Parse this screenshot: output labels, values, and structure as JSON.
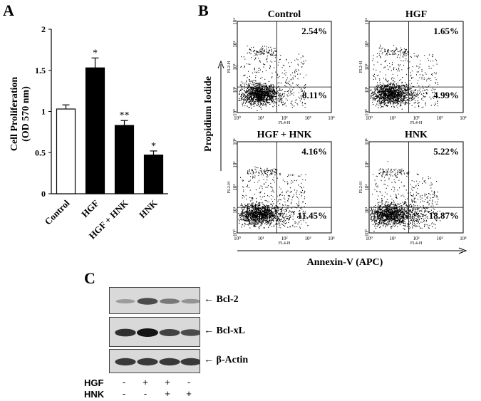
{
  "panel_a": {
    "letter": "A",
    "ylabel_line1": "Cell Proliferation",
    "ylabel_line2": "(OD 570 nm)"
  },
  "panel_b": {
    "letter": "B",
    "xlabel": "Annexin-V (APC)",
    "ylabel": "Propidium Iodide",
    "axis_x_name": "FL4-H",
    "axis_y_name": "FL2-H",
    "ticks": [
      "10⁰",
      "10¹",
      "10²",
      "10³",
      "10⁴"
    ],
    "plots": [
      {
        "title": "Control",
        "upper_right": "2.54%",
        "lower_right": "8.11%"
      },
      {
        "title": "HGF",
        "upper_right": "1.65%",
        "lower_right": "4.99%"
      },
      {
        "title": "HGF + HNK",
        "upper_right": "4.16%",
        "lower_right": "11.45%"
      },
      {
        "title": "HNK",
        "upper_right": "5.22%",
        "lower_right": "18.87%"
      }
    ]
  },
  "panel_c": {
    "letter": "C",
    "bands": [
      "Bcl-2",
      "Bcl-xL",
      "β-Actin"
    ],
    "band_intensity": [
      [
        0.25,
        0.7,
        0.45,
        0.3
      ],
      [
        0.85,
        1.0,
        0.75,
        0.7
      ],
      [
        0.8,
        0.8,
        0.8,
        0.8
      ]
    ],
    "treatments": [
      {
        "label": "HGF",
        "signs": [
          "-",
          "+",
          "+",
          "-"
        ]
      },
      {
        "label": "HNK",
        "signs": [
          "-",
          "-",
          "+",
          "+"
        ]
      }
    ]
  },
  "chart_data": {
    "type": "bar",
    "categories": [
      "Control",
      "HGF",
      "HGF + HNK",
      "HNK"
    ],
    "values": [
      1.03,
      1.53,
      0.83,
      0.47
    ],
    "errors": [
      0.05,
      0.12,
      0.06,
      0.05
    ],
    "significance": [
      "",
      "*",
      "**",
      "*"
    ],
    "bar_colors": [
      "#ffffff",
      "#000000",
      "#000000",
      "#000000"
    ],
    "ylim": [
      0,
      2
    ],
    "yticks": [
      "0",
      "0.5",
      "1",
      "1.5",
      "2"
    ]
  }
}
